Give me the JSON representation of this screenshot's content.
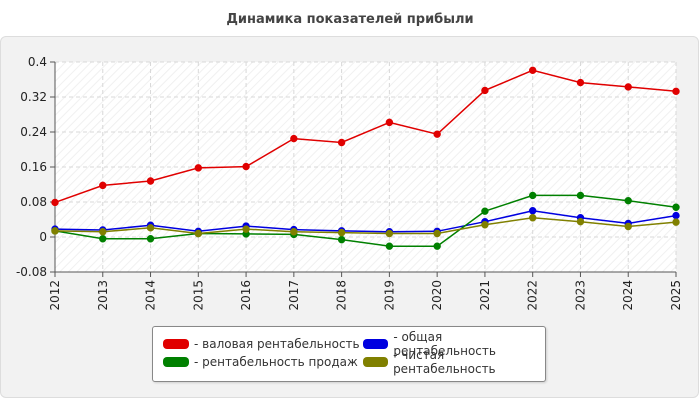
{
  "chart_data": {
    "type": "line",
    "title": "Динамика показателей прибыли",
    "x": [
      "2012",
      "2013",
      "2014",
      "2015",
      "2016",
      "2017",
      "2018",
      "2019",
      "2020",
      "2021",
      "2022",
      "2023",
      "2024",
      "2025"
    ],
    "ylim": [
      -0.08,
      0.4
    ],
    "yticks": [
      "-0.08",
      "0",
      "0.08",
      "0.16",
      "0.24",
      "0.32",
      "0.4"
    ],
    "grid": true,
    "legend_position": "bottom",
    "series": [
      {
        "name": "- валовая рентабельность",
        "color": "#e00000",
        "values": [
          0.079,
          0.118,
          0.128,
          0.158,
          0.161,
          0.225,
          0.216,
          0.262,
          0.235,
          0.335,
          0.381,
          0.353,
          0.343,
          0.333
        ]
      },
      {
        "name": "- общая рентабельность",
        "color": "#0000e0",
        "values": [
          0.018,
          0.016,
          0.027,
          0.013,
          0.025,
          0.017,
          0.014,
          0.012,
          0.013,
          0.035,
          0.06,
          0.044,
          0.031,
          0.049
        ]
      },
      {
        "name": "- рентабельность продаж",
        "color": "#008000",
        "values": [
          0.014,
          -0.004,
          -0.004,
          0.008,
          0.007,
          0.006,
          -0.006,
          -0.021,
          -0.021,
          0.059,
          0.095,
          0.095,
          0.083,
          0.068
        ]
      },
      {
        "name": "- чистая рентабельность",
        "color": "#808000",
        "values": [
          0.014,
          0.012,
          0.021,
          0.008,
          0.018,
          0.012,
          0.01,
          0.008,
          0.008,
          0.028,
          0.044,
          0.035,
          0.024,
          0.034
        ]
      }
    ]
  }
}
